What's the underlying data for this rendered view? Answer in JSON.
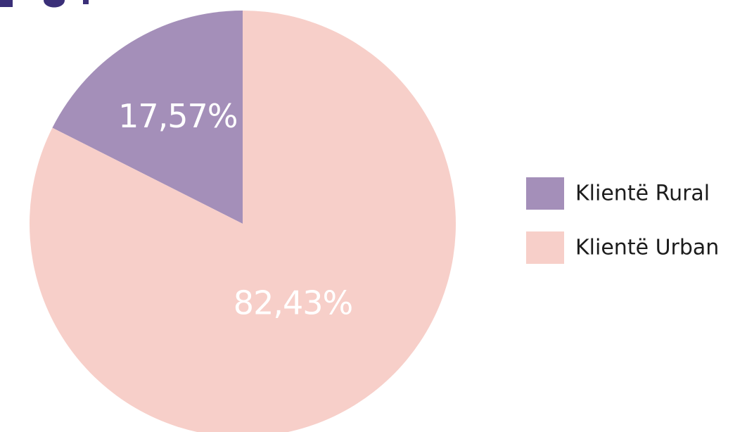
{
  "chart_data": {
    "type": "pie",
    "categories": [
      "Klientë Rural",
      "Klientë Urban"
    ],
    "values": [
      17.57,
      82.43
    ],
    "value_labels": [
      "17,57%",
      "82,43%"
    ],
    "colors": [
      "#a48fb9",
      "#f7cfc9"
    ],
    "start_angle_deg": 0,
    "direction": "counterclockwise",
    "legend_position": "right"
  }
}
